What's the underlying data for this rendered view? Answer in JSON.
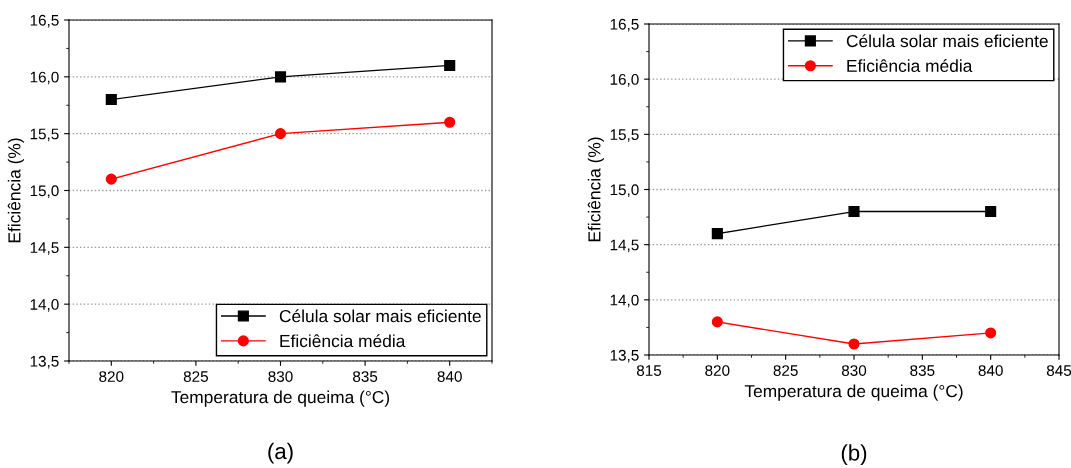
{
  "chart_data": [
    {
      "type": "line",
      "xlabel": "Temperatura de queima (°C)",
      "ylabel": "Eficiência (%)",
      "annotations": [
        "(a)"
      ],
      "x": [
        820,
        830,
        840
      ],
      "series": [
        {
          "name": "Célula solar mais eficiente",
          "color": "#000000",
          "marker": "square",
          "values": [
            15.8,
            16.0,
            16.1
          ]
        },
        {
          "name": "Eficiência média",
          "color": "#ff0000",
          "marker": "circle",
          "values": [
            15.1,
            15.5,
            15.6
          ]
        }
      ],
      "xlim": [
        817.5,
        842.5
      ],
      "xticks": [
        820,
        825,
        830,
        835,
        840
      ],
      "ylim": [
        13.5,
        16.5
      ],
      "yticks": [
        {
          "value": 13.5,
          "label": "13,5"
        },
        {
          "value": 14.0,
          "label": "14,0"
        },
        {
          "value": 14.5,
          "label": "14,5"
        },
        {
          "value": 15.0,
          "label": "15,0"
        },
        {
          "value": 15.5,
          "label": "15,5"
        },
        {
          "value": 16.0,
          "label": "16,0"
        },
        {
          "value": 16.5,
          "label": "16,5"
        }
      ],
      "grid": "y",
      "legend": "bottom right",
      "line_style": "solid"
    },
    {
      "type": "line",
      "xlabel": "Temperatura de queima (°C)",
      "ylabel": "Eficiência (%)",
      "annotations": [
        "(b)"
      ],
      "x": [
        820,
        830,
        840
      ],
      "series": [
        {
          "name": "Célula solar mais eficiente",
          "color": "#000000",
          "marker": "square",
          "values": [
            14.6,
            14.8,
            14.8
          ]
        },
        {
          "name": "Eficiência média",
          "color": "#ff0000",
          "marker": "circle",
          "values": [
            13.8,
            13.6,
            13.7
          ]
        }
      ],
      "xlim": [
        815,
        845
      ],
      "xticks": [
        815,
        820,
        825,
        830,
        835,
        840,
        845
      ],
      "ylim": [
        13.5,
        16.5
      ],
      "yticks": [
        {
          "value": 13.5,
          "label": "13,5"
        },
        {
          "value": 14.0,
          "label": "14,0"
        },
        {
          "value": 14.5,
          "label": "14,5"
        },
        {
          "value": 15.0,
          "label": "15,0"
        },
        {
          "value": 15.5,
          "label": "15,5"
        },
        {
          "value": 16.0,
          "label": "16,0"
        },
        {
          "value": 16.5,
          "label": "16,5"
        }
      ],
      "grid": "y",
      "legend": "top right",
      "line_style": "solid"
    }
  ]
}
